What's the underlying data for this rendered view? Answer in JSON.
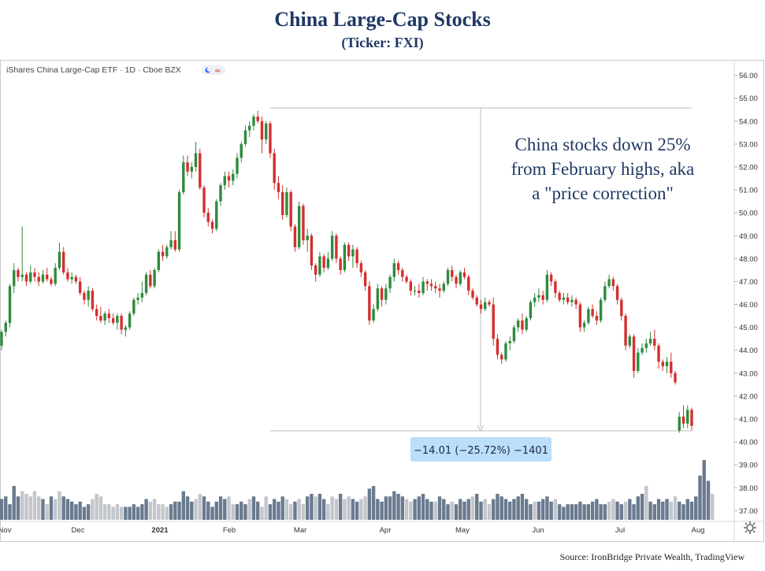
{
  "page": {
    "title": "China Large-Cap Stocks",
    "subtitle": "(Ticker: FXI)",
    "source": "Source: IronBridge Private Wealth, TradingView"
  },
  "chart_data": {
    "type": "candlestick",
    "header": "iShares China Large-Cap ETF · 1D · Cboe BZX",
    "annotation": "China stocks down 25%\nfrom February highs, aka\na \"price correction\"",
    "measure_label": "−14.01 (−25.72%) −1401",
    "y_axis": {
      "min": 36.6,
      "max": 56.4,
      "ticks": [
        37.0,
        38.0,
        39.0,
        40.0,
        41.0,
        42.0,
        43.0,
        44.0,
        45.0,
        46.0,
        47.0,
        48.0,
        49.0,
        50.0,
        51.0,
        52.0,
        53.0,
        54.0,
        55.0,
        56.0
      ]
    },
    "x_ticks": [
      "Nov",
      "Dec",
      "2021",
      "Feb",
      "Mar",
      "Apr",
      "May",
      "Jun",
      "Jul",
      "Aug"
    ],
    "measure": {
      "from": 54.45,
      "to": 40.44
    },
    "colors": {
      "up": "#2e8b3e",
      "down": "#d32f2f",
      "vol_dark": "#6a7a8f",
      "vol_light": "#c3c6cb",
      "label_bg": "#bbdefb"
    },
    "candles": [
      [
        44.2,
        44.9,
        44.0,
        44.8
      ],
      [
        44.8,
        45.3,
        44.6,
        45.2
      ],
      [
        45.2,
        46.9,
        45.0,
        46.8
      ],
      [
        46.8,
        47.8,
        46.5,
        47.5
      ],
      [
        47.5,
        47.6,
        47.0,
        47.2
      ],
      [
        47.2,
        49.4,
        47.0,
        47.3
      ],
      [
        47.3,
        47.4,
        46.8,
        47.0
      ],
      [
        47.0,
        47.7,
        46.9,
        47.4
      ],
      [
        47.4,
        47.6,
        47.0,
        47.2
      ],
      [
        47.2,
        47.4,
        46.8,
        47.0
      ],
      [
        47.0,
        47.5,
        46.9,
        47.3
      ],
      [
        47.3,
        47.6,
        47.0,
        47.1
      ],
      [
        47.1,
        47.2,
        46.8,
        46.9
      ],
      [
        46.9,
        47.8,
        46.8,
        47.6
      ],
      [
        47.6,
        48.7,
        47.5,
        48.3
      ],
      [
        48.3,
        48.5,
        47.3,
        47.4
      ],
      [
        47.4,
        47.6,
        47.0,
        47.1
      ],
      [
        47.1,
        47.4,
        46.9,
        47.2
      ],
      [
        47.2,
        47.3,
        46.9,
        47.0
      ],
      [
        47.0,
        47.2,
        46.4,
        46.5
      ],
      [
        46.5,
        46.6,
        46.0,
        46.2
      ],
      [
        46.2,
        46.8,
        45.9,
        46.6
      ],
      [
        46.6,
        46.7,
        45.7,
        45.8
      ],
      [
        45.8,
        46.0,
        45.3,
        45.5
      ],
      [
        45.5,
        45.9,
        45.2,
        45.3
      ],
      [
        45.3,
        45.7,
        45.1,
        45.6
      ],
      [
        45.6,
        45.8,
        45.2,
        45.4
      ],
      [
        45.4,
        45.6,
        45.1,
        45.2
      ],
      [
        45.2,
        45.6,
        44.9,
        45.5
      ],
      [
        45.5,
        45.6,
        44.7,
        44.9
      ],
      [
        44.9,
        45.1,
        44.6,
        45.0
      ],
      [
        45.0,
        45.7,
        44.9,
        45.6
      ],
      [
        45.6,
        46.3,
        45.5,
        46.2
      ],
      [
        46.2,
        46.5,
        46.0,
        46.3
      ],
      [
        46.3,
        47.0,
        46.1,
        46.5
      ],
      [
        46.5,
        47.4,
        46.4,
        47.3
      ],
      [
        47.3,
        47.5,
        46.7,
        46.8
      ],
      [
        46.8,
        47.6,
        46.7,
        47.5
      ],
      [
        47.5,
        48.4,
        47.4,
        48.3
      ],
      [
        48.3,
        48.6,
        47.9,
        48.1
      ],
      [
        48.1,
        48.6,
        48.0,
        48.5
      ],
      [
        48.5,
        49.2,
        48.4,
        48.8
      ],
      [
        48.8,
        49.2,
        48.3,
        48.4
      ],
      [
        48.4,
        51.0,
        48.3,
        50.9
      ],
      [
        50.9,
        52.5,
        50.8,
        52.2
      ],
      [
        52.2,
        52.5,
        51.6,
        51.8
      ],
      [
        51.8,
        52.2,
        51.5,
        52.0
      ],
      [
        52.0,
        53.1,
        51.8,
        52.6
      ],
      [
        52.6,
        52.8,
        51.0,
        51.1
      ],
      [
        51.1,
        51.2,
        49.8,
        50.0
      ],
      [
        50.0,
        50.2,
        49.4,
        49.6
      ],
      [
        49.6,
        49.7,
        49.1,
        49.3
      ],
      [
        49.3,
        50.6,
        49.2,
        50.5
      ],
      [
        50.5,
        51.3,
        50.3,
        51.2
      ],
      [
        51.2,
        51.8,
        51.0,
        51.6
      ],
      [
        51.6,
        51.8,
        51.1,
        51.4
      ],
      [
        51.4,
        51.9,
        51.2,
        51.7
      ],
      [
        51.7,
        52.6,
        51.5,
        52.4
      ],
      [
        52.4,
        53.1,
        52.2,
        53.0
      ],
      [
        53.0,
        53.8,
        52.9,
        53.6
      ],
      [
        53.6,
        54.0,
        53.3,
        53.8
      ],
      [
        53.8,
        54.3,
        53.6,
        54.2
      ],
      [
        54.2,
        54.45,
        53.9,
        54.0
      ],
      [
        54.0,
        54.2,
        52.6,
        53.2
      ],
      [
        53.2,
        54.0,
        53.0,
        53.9
      ],
      [
        53.9,
        54.0,
        52.4,
        52.6
      ],
      [
        52.6,
        52.8,
        51.0,
        51.3
      ],
      [
        51.3,
        51.6,
        50.6,
        50.9
      ],
      [
        50.9,
        51.2,
        49.7,
        49.9
      ],
      [
        49.9,
        51.1,
        49.8,
        50.9
      ],
      [
        50.9,
        51.0,
        49.2,
        49.4
      ],
      [
        49.4,
        49.5,
        48.3,
        48.5
      ],
      [
        48.5,
        50.5,
        48.4,
        50.3
      ],
      [
        50.3,
        50.4,
        48.6,
        48.8
      ],
      [
        48.8,
        49.3,
        48.3,
        49.0
      ],
      [
        49.0,
        49.1,
        47.5,
        47.7
      ],
      [
        47.7,
        47.8,
        47.0,
        47.3
      ],
      [
        47.3,
        48.3,
        47.2,
        48.1
      ],
      [
        48.1,
        48.2,
        47.4,
        47.6
      ],
      [
        47.6,
        48.3,
        47.5,
        48.0
      ],
      [
        48.0,
        49.2,
        47.9,
        49.0
      ],
      [
        49.0,
        49.1,
        47.8,
        48.0
      ],
      [
        48.0,
        48.1,
        47.3,
        47.5
      ],
      [
        47.5,
        48.7,
        47.4,
        48.6
      ],
      [
        48.6,
        48.7,
        47.9,
        48.1
      ],
      [
        48.1,
        48.6,
        47.6,
        48.4
      ],
      [
        48.4,
        48.5,
        47.6,
        47.8
      ],
      [
        47.8,
        47.9,
        47.2,
        47.4
      ],
      [
        47.4,
        47.5,
        46.6,
        46.8
      ],
      [
        46.8,
        47.0,
        45.1,
        45.3
      ],
      [
        45.3,
        46.0,
        45.2,
        45.8
      ],
      [
        45.8,
        46.9,
        45.7,
        46.7
      ],
      [
        46.7,
        46.8,
        45.9,
        46.2
      ],
      [
        46.2,
        46.9,
        46.0,
        46.7
      ],
      [
        46.7,
        47.3,
        46.5,
        47.2
      ],
      [
        47.2,
        48.0,
        47.0,
        47.8
      ],
      [
        47.8,
        47.9,
        47.3,
        47.5
      ],
      [
        47.5,
        47.6,
        47.0,
        47.2
      ],
      [
        47.2,
        47.3,
        46.9,
        47.0
      ],
      [
        47.0,
        47.1,
        46.4,
        46.6
      ],
      [
        46.6,
        46.8,
        46.4,
        46.6
      ],
      [
        46.6,
        46.9,
        46.3,
        46.5
      ],
      [
        46.5,
        47.2,
        46.4,
        47.0
      ],
      [
        47.0,
        47.1,
        46.6,
        46.9
      ],
      [
        46.9,
        47.1,
        46.6,
        46.8
      ],
      [
        46.8,
        47.0,
        46.5,
        46.7
      ],
      [
        46.7,
        46.9,
        46.3,
        46.6
      ],
      [
        46.6,
        47.0,
        46.5,
        46.9
      ],
      [
        46.9,
        47.6,
        46.8,
        47.5
      ],
      [
        47.5,
        47.7,
        47.0,
        47.2
      ],
      [
        47.2,
        47.3,
        46.7,
        46.9
      ],
      [
        46.9,
        47.5,
        46.8,
        47.4
      ],
      [
        47.4,
        47.6,
        47.1,
        47.2
      ],
      [
        47.2,
        47.3,
        46.4,
        46.6
      ],
      [
        46.6,
        46.7,
        46.2,
        46.3
      ],
      [
        46.3,
        46.4,
        45.9,
        46.0
      ],
      [
        46.0,
        46.2,
        45.6,
        45.8
      ],
      [
        45.8,
        46.3,
        45.7,
        46.1
      ],
      [
        46.1,
        46.2,
        45.9,
        46.0
      ],
      [
        46.0,
        46.3,
        44.2,
        44.5
      ],
      [
        44.5,
        44.7,
        43.6,
        43.8
      ],
      [
        43.8,
        43.9,
        43.4,
        43.6
      ],
      [
        43.6,
        44.4,
        43.5,
        44.3
      ],
      [
        44.3,
        44.6,
        44.0,
        44.4
      ],
      [
        44.4,
        45.1,
        44.3,
        45.0
      ],
      [
        45.0,
        45.4,
        44.8,
        45.3
      ],
      [
        45.3,
        45.6,
        44.7,
        44.9
      ],
      [
        44.9,
        45.5,
        44.8,
        45.4
      ],
      [
        45.4,
        46.2,
        45.3,
        46.1
      ],
      [
        46.1,
        46.5,
        45.9,
        46.3
      ],
      [
        46.3,
        46.7,
        46.1,
        46.4
      ],
      [
        46.4,
        46.6,
        46.0,
        46.2
      ],
      [
        46.2,
        47.5,
        46.1,
        47.3
      ],
      [
        47.3,
        47.4,
        46.8,
        47.0
      ],
      [
        47.0,
        47.1,
        46.3,
        46.5
      ],
      [
        46.5,
        46.6,
        46.1,
        46.2
      ],
      [
        46.2,
        46.5,
        46.0,
        46.3
      ],
      [
        46.3,
        46.5,
        46.0,
        46.1
      ],
      [
        46.1,
        46.4,
        45.9,
        46.2
      ],
      [
        46.2,
        46.3,
        45.8,
        46.0
      ],
      [
        46.0,
        46.1,
        44.8,
        45.0
      ],
      [
        45.0,
        45.3,
        44.8,
        45.2
      ],
      [
        45.2,
        45.9,
        45.1,
        45.8
      ],
      [
        45.8,
        46.0,
        45.4,
        45.5
      ],
      [
        45.5,
        45.7,
        45.1,
        45.3
      ],
      [
        45.3,
        46.3,
        45.2,
        46.2
      ],
      [
        46.2,
        47.0,
        46.1,
        46.8
      ],
      [
        46.8,
        47.3,
        46.7,
        47.1
      ],
      [
        47.1,
        47.2,
        46.6,
        46.8
      ],
      [
        46.8,
        46.9,
        46.0,
        46.2
      ],
      [
        46.2,
        46.3,
        45.3,
        45.5
      ],
      [
        45.5,
        45.6,
        44.0,
        44.2
      ],
      [
        44.2,
        44.7,
        44.1,
        44.6
      ],
      [
        44.6,
        44.7,
        42.8,
        43.1
      ],
      [
        43.1,
        44.1,
        43.0,
        43.9
      ],
      [
        43.9,
        44.3,
        43.8,
        44.1
      ],
      [
        44.1,
        44.5,
        43.9,
        44.3
      ],
      [
        44.3,
        44.8,
        44.2,
        44.5
      ],
      [
        44.5,
        44.9,
        44.0,
        44.2
      ],
      [
        44.2,
        44.3,
        43.2,
        43.5
      ],
      [
        43.5,
        43.6,
        43.1,
        43.3
      ],
      [
        43.3,
        43.7,
        43.0,
        43.5
      ],
      [
        43.5,
        43.9,
        42.8,
        43.0
      ],
      [
        43.0,
        43.1,
        42.5,
        42.6
      ],
      [
        40.5,
        41.3,
        40.4,
        41.1
      ],
      [
        41.1,
        41.6,
        40.6,
        40.8
      ],
      [
        40.8,
        41.6,
        40.6,
        41.4
      ],
      [
        41.4,
        41.5,
        40.5,
        40.7
      ]
    ],
    "volume": [
      8,
      9,
      6,
      13,
      9,
      11,
      10,
      9,
      11,
      9,
      8,
      6,
      9,
      8,
      11,
      9,
      8,
      7,
      6,
      7,
      5,
      6,
      8,
      10,
      9,
      6,
      6,
      5,
      6,
      5,
      5,
      5,
      6,
      5,
      6,
      8,
      7,
      8,
      6,
      6,
      5,
      6,
      7,
      7,
      11,
      9,
      7,
      8,
      10,
      9,
      7,
      5,
      7,
      9,
      8,
      9,
      6,
      6,
      7,
      6,
      8,
      9,
      7,
      5,
      9,
      6,
      8,
      7,
      9,
      8,
      6,
      7,
      8,
      6,
      9,
      10,
      9,
      10,
      8,
      6,
      9,
      8,
      10,
      8,
      9,
      8,
      7,
      8,
      9,
      12,
      13,
      8,
      7,
      9,
      9,
      11,
      10,
      9,
      8,
      7,
      8,
      9,
      10,
      8,
      7,
      7,
      9,
      8,
      6,
      7,
      6,
      8,
      7,
      8,
      9,
      10,
      7,
      8,
      6,
      8,
      10,
      9,
      8,
      7,
      8,
      9,
      10,
      8,
      6,
      7,
      7,
      8,
      9,
      7,
      8,
      6,
      5,
      6,
      6,
      6,
      7,
      6,
      6,
      7,
      8,
      6,
      6,
      7,
      8,
      7,
      6,
      7,
      8,
      6,
      9,
      10,
      13,
      7,
      6,
      8,
      7,
      8,
      7,
      9,
      7,
      6,
      8,
      7,
      9,
      17,
      23,
      15,
      10
    ],
    "volume_light": [
      5,
      6,
      7,
      8,
      9,
      11,
      13,
      14,
      22,
      23,
      24,
      25,
      26,
      27,
      28,
      29,
      36,
      37,
      38,
      39,
      40,
      47,
      48,
      55,
      56,
      60,
      63,
      64,
      69,
      70,
      72,
      73,
      76,
      79,
      80,
      81,
      83,
      84,
      87,
      88,
      98,
      99,
      105,
      109,
      114,
      117,
      118,
      129,
      134,
      147,
      148,
      151,
      156,
      162,
      163,
      172,
      176
    ]
  }
}
